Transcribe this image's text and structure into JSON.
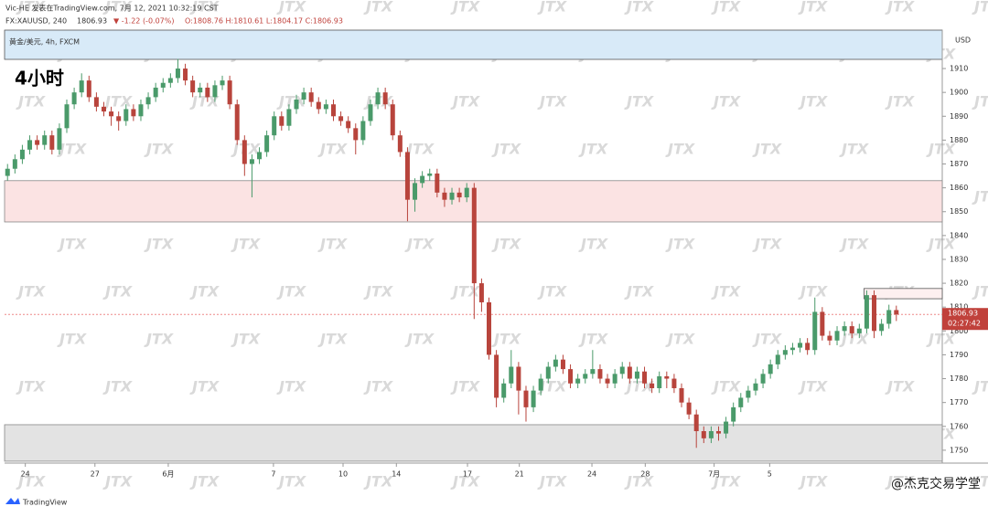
{
  "page": {
    "published": "Vic-HE 发表在TradingView.com, 7月 12, 2021 10:32:19 CST",
    "symbol_line": "FX:XAUUSD, 240",
    "change": "▼ -1.22 (-0.07%)",
    "ohlc_text": "O:1808.76 H:1810.61 L:1804.17 C:1806.93",
    "symbol_name": "黄金/美元, 4h, FXCM",
    "timeframe": "4小时",
    "currency": "USD",
    "countdown": "02:27:42",
    "watermark": "JTX",
    "brand": "TradingView",
    "credit": "@杰克交易学堂"
  },
  "chart_data": {
    "type": "candlestick",
    "up_color": "#4a9a6a",
    "down_color": "#b8443c",
    "grid": false,
    "xlim": [
      -0.4,
      126.2
    ],
    "ylim": [
      1744.6,
      1926.1
    ],
    "yticks": [
      1750,
      1760,
      1770,
      1780,
      1790,
      1800,
      1810,
      1820,
      1830,
      1840,
      1850,
      1860,
      1870,
      1880,
      1890,
      1900,
      1910
    ],
    "xticks": [
      {
        "value": 2.4,
        "label": "24"
      },
      {
        "value": 11.8,
        "label": "27"
      },
      {
        "value": 21.7,
        "label": "6月"
      },
      {
        "value": 35.9,
        "label": "7"
      },
      {
        "value": 45.3,
        "label": "10"
      },
      {
        "value": 52.5,
        "label": "14"
      },
      {
        "value": 62.1,
        "label": "17"
      },
      {
        "value": 69.1,
        "label": "21"
      },
      {
        "value": 78.9,
        "label": "24"
      },
      {
        "value": 86.1,
        "label": "28"
      },
      {
        "value": 95.4,
        "label": "7月"
      },
      {
        "value": 102.9,
        "label": "5"
      }
    ],
    "zones": [
      {
        "top": 1863,
        "bottom": 1845.7,
        "color": "#fbe3e3",
        "border": "#888"
      },
      {
        "top": 1760.7,
        "bottom": 1745.4,
        "color": "#e3e3e3",
        "border": "#888"
      },
      {
        "top": 1817.8,
        "bottom": 1813.5,
        "start": 116,
        "color": "#fdf0f0",
        "border": "#555"
      }
    ],
    "open": [
      1865,
      1868,
      1872,
      1876,
      1880,
      1878,
      1882,
      1876,
      1885,
      1895,
      1900,
      1905,
      1898,
      1894,
      1892,
      1890,
      1888,
      1893,
      1890,
      1895,
      1898,
      1902,
      1904,
      1906,
      1910,
      1905,
      1900,
      1902,
      1898,
      1903,
      1905,
      1895,
      1880,
      1870,
      1872,
      1875,
      1882,
      1890,
      1886,
      1893,
      1897,
      1900,
      1896,
      1893,
      1895,
      1890,
      1888,
      1885,
      1880,
      1888,
      1895,
      1900,
      1895,
      1882,
      1875,
      1855,
      1862,
      1865,
      1866,
      1858,
      1855,
      1858,
      1856,
      1860,
      1820,
      1812,
      1790,
      1772,
      1778,
      1785,
      1775,
      1768,
      1775,
      1780,
      1785,
      1788,
      1784,
      1778,
      1780,
      1782,
      1784,
      1780,
      1778,
      1782,
      1785,
      1780,
      1783,
      1778,
      1776,
      1781,
      1780,
      1776,
      1770,
      1765,
      1758,
      1755,
      1758,
      1757,
      1762,
      1768,
      1772,
      1775,
      1778,
      1782,
      1786,
      1790,
      1792,
      1793,
      1795,
      1792,
      1808,
      1798,
      1796,
      1800,
      1802,
      1799,
      1801,
      1815,
      1800,
      1803,
      1808.76
    ],
    "high": [
      1870,
      1874,
      1878,
      1882,
      1882,
      1884,
      1884,
      1887,
      1897,
      1902,
      1908,
      1907,
      1900,
      1896,
      1894,
      1892,
      1895,
      1895,
      1897,
      1900,
      1904,
      1906,
      1908,
      1914,
      1912,
      1907,
      1904,
      1904,
      1905,
      1907,
      1907,
      1897,
      1882,
      1874,
      1877,
      1884,
      1892,
      1892,
      1895,
      1899,
      1902,
      1902,
      1898,
      1897,
      1897,
      1892,
      1890,
      1887,
      1890,
      1897,
      1902,
      1902,
      1897,
      1884,
      1877,
      1864,
      1867,
      1868,
      1868,
      1860,
      1860,
      1860,
      1862,
      1862,
      1822,
      1814,
      1792,
      1780,
      1792,
      1787,
      1777,
      1777,
      1782,
      1787,
      1790,
      1790,
      1786,
      1782,
      1784,
      1792,
      1786,
      1782,
      1784,
      1787,
      1787,
      1785,
      1785,
      1780,
      1783,
      1783,
      1782,
      1778,
      1772,
      1767,
      1760,
      1760,
      1760,
      1764,
      1770,
      1774,
      1777,
      1780,
      1784,
      1788,
      1792,
      1794,
      1795,
      1797,
      1797,
      1814,
      1810,
      1800,
      1802,
      1804,
      1804,
      1803,
      1817,
      1817,
      1805,
      1811,
      1810.61
    ],
    "low": [
      1863,
      1866,
      1870,
      1874,
      1876,
      1876,
      1874,
      1874,
      1883,
      1893,
      1898,
      1896,
      1892,
      1890,
      1886,
      1884,
      1886,
      1888,
      1888,
      1893,
      1896,
      1900,
      1902,
      1904,
      1903,
      1898,
      1898,
      1896,
      1896,
      1901,
      1893,
      1878,
      1865,
      1856,
      1870,
      1873,
      1880,
      1884,
      1884,
      1891,
      1895,
      1894,
      1891,
      1891,
      1888,
      1886,
      1883,
      1874,
      1878,
      1886,
      1893,
      1893,
      1880,
      1873,
      1846,
      1850,
      1860,
      1863,
      1856,
      1852,
      1853,
      1854,
      1854,
      1805,
      1808,
      1788,
      1768,
      1770,
      1776,
      1765,
      1762,
      1766,
      1773,
      1778,
      1783,
      1782,
      1776,
      1776,
      1778,
      1780,
      1778,
      1776,
      1776,
      1780,
      1778,
      1778,
      1776,
      1774,
      1774,
      1776,
      1774,
      1768,
      1763,
      1751,
      1753,
      1753,
      1754,
      1755,
      1760,
      1766,
      1770,
      1773,
      1776,
      1780,
      1784,
      1788,
      1790,
      1791,
      1790,
      1790,
      1796,
      1794,
      1794,
      1798,
      1797,
      1797,
      1799,
      1797,
      1798,
      1801,
      1804.17
    ],
    "close": [
      1868,
      1872,
      1876,
      1880,
      1878,
      1882,
      1876,
      1885,
      1895,
      1900,
      1905,
      1898,
      1894,
      1892,
      1890,
      1888,
      1893,
      1890,
      1895,
      1898,
      1902,
      1904,
      1906,
      1910,
      1905,
      1900,
      1902,
      1898,
      1903,
      1905,
      1895,
      1880,
      1870,
      1872,
      1875,
      1882,
      1890,
      1886,
      1893,
      1897,
      1900,
      1896,
      1893,
      1895,
      1890,
      1888,
      1885,
      1880,
      1888,
      1895,
      1900,
      1895,
      1882,
      1875,
      1855,
      1862,
      1865,
      1866,
      1858,
      1855,
      1858,
      1856,
      1860,
      1820,
      1812,
      1790,
      1772,
      1778,
      1785,
      1775,
      1768,
      1775,
      1780,
      1785,
      1788,
      1784,
      1778,
      1780,
      1782,
      1784,
      1780,
      1778,
      1782,
      1785,
      1780,
      1783,
      1778,
      1776,
      1781,
      1780,
      1776,
      1770,
      1765,
      1758,
      1755,
      1758,
      1757,
      1762,
      1768,
      1772,
      1775,
      1778,
      1782,
      1786,
      1790,
      1792,
      1793,
      1795,
      1792,
      1808,
      1798,
      1796,
      1800,
      1802,
      1799,
      1801,
      1815,
      1800,
      1803,
      1808.76,
      1806.93
    ]
  }
}
